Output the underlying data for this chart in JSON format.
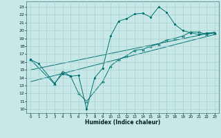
{
  "title": "",
  "xlabel": "Humidex (Indice chaleur)",
  "bg_color": "#c8e8e8",
  "line_color": "#007070",
  "grid_color": "#a8d0d0",
  "xlim": [
    -0.5,
    23.5
  ],
  "ylim": [
    9.5,
    23.7
  ],
  "yticks": [
    10,
    11,
    12,
    13,
    14,
    15,
    16,
    17,
    18,
    19,
    20,
    21,
    22,
    23
  ],
  "xticks": [
    0,
    1,
    2,
    3,
    4,
    5,
    6,
    7,
    8,
    9,
    10,
    11,
    12,
    13,
    14,
    15,
    16,
    17,
    18,
    19,
    20,
    21,
    22,
    23
  ],
  "line1_x": [
    0,
    1,
    3,
    4,
    5,
    6,
    7,
    8,
    9,
    10,
    11,
    12,
    13,
    14,
    15,
    16,
    17,
    18,
    19,
    20,
    21,
    22,
    23
  ],
  "line1_y": [
    16.3,
    15.8,
    13.3,
    14.5,
    14.2,
    14.3,
    10.0,
    14.0,
    15.2,
    19.3,
    21.2,
    21.5,
    22.1,
    22.2,
    21.7,
    23.0,
    22.3,
    20.8,
    20.0,
    19.7,
    19.5,
    19.7,
    19.7
  ],
  "line2_x": [
    0,
    3,
    4,
    5,
    6,
    7,
    9,
    10,
    11,
    12,
    13,
    14,
    15,
    16,
    17,
    18,
    19,
    20,
    21,
    22,
    23
  ],
  "line2_y": [
    16.3,
    13.2,
    14.8,
    14.2,
    12.0,
    11.0,
    13.5,
    15.5,
    16.3,
    16.8,
    17.5,
    17.6,
    18.0,
    18.3,
    18.8,
    19.0,
    19.3,
    19.8,
    19.8,
    19.5,
    19.7
  ],
  "trend1_x": [
    0,
    23
  ],
  "trend1_y": [
    15.0,
    19.8
  ],
  "trend2_x": [
    0,
    23
  ],
  "trend2_y": [
    13.5,
    19.5
  ]
}
